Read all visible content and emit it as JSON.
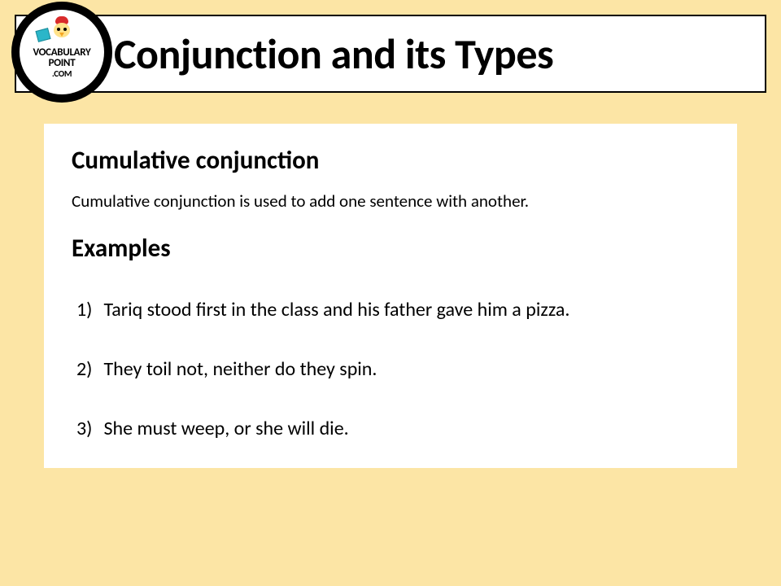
{
  "page": {
    "background_color": "#fce5a5",
    "content_background": "#ffffff",
    "text_color": "#000000"
  },
  "logo": {
    "line1": "VOCABULARY",
    "line2": "POINT",
    "line3": ".COM"
  },
  "header": {
    "title": "Conjunction and its Types"
  },
  "content": {
    "subheading": "Cumulative conjunction",
    "definition": "Cumulative conjunction is used to add one sentence with another.",
    "examples_heading": "Examples",
    "examples": [
      {
        "n": "1)",
        "text": "Tariq stood first in the class and his father gave him a pizza."
      },
      {
        "n": "2)",
        "text": "They toil not, neither do they spin."
      },
      {
        "n": "3)",
        "text": "She must weep, or she will die."
      }
    ]
  }
}
